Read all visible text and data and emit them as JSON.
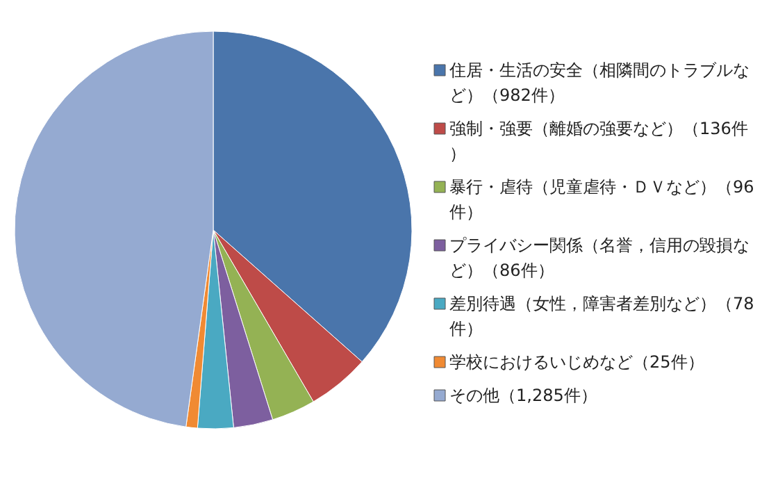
{
  "chart_data": {
    "type": "pie",
    "legend": "right",
    "categories": [
      "住居・生活の安全（相隣間のトラブルなど）（982件）",
      "強制・強要（離婚の強要など）（136件）",
      "暴行・虐待（児童虐待・ＤＶなど）（96件）",
      "プライバシー関係（名誉，信用の毀損など）（86件）",
      "差別待遇（女性，障害者差別など）（78件）",
      "学校におけるいじめなど（25件）",
      "その他（1,285件）"
    ],
    "values": [
      982,
      136,
      96,
      86,
      78,
      25,
      1285
    ],
    "colors": [
      "#4a75ab",
      "#be4b48",
      "#94b254",
      "#7d5f9f",
      "#4aa9c2",
      "#f08a33",
      "#95aad1"
    ]
  }
}
